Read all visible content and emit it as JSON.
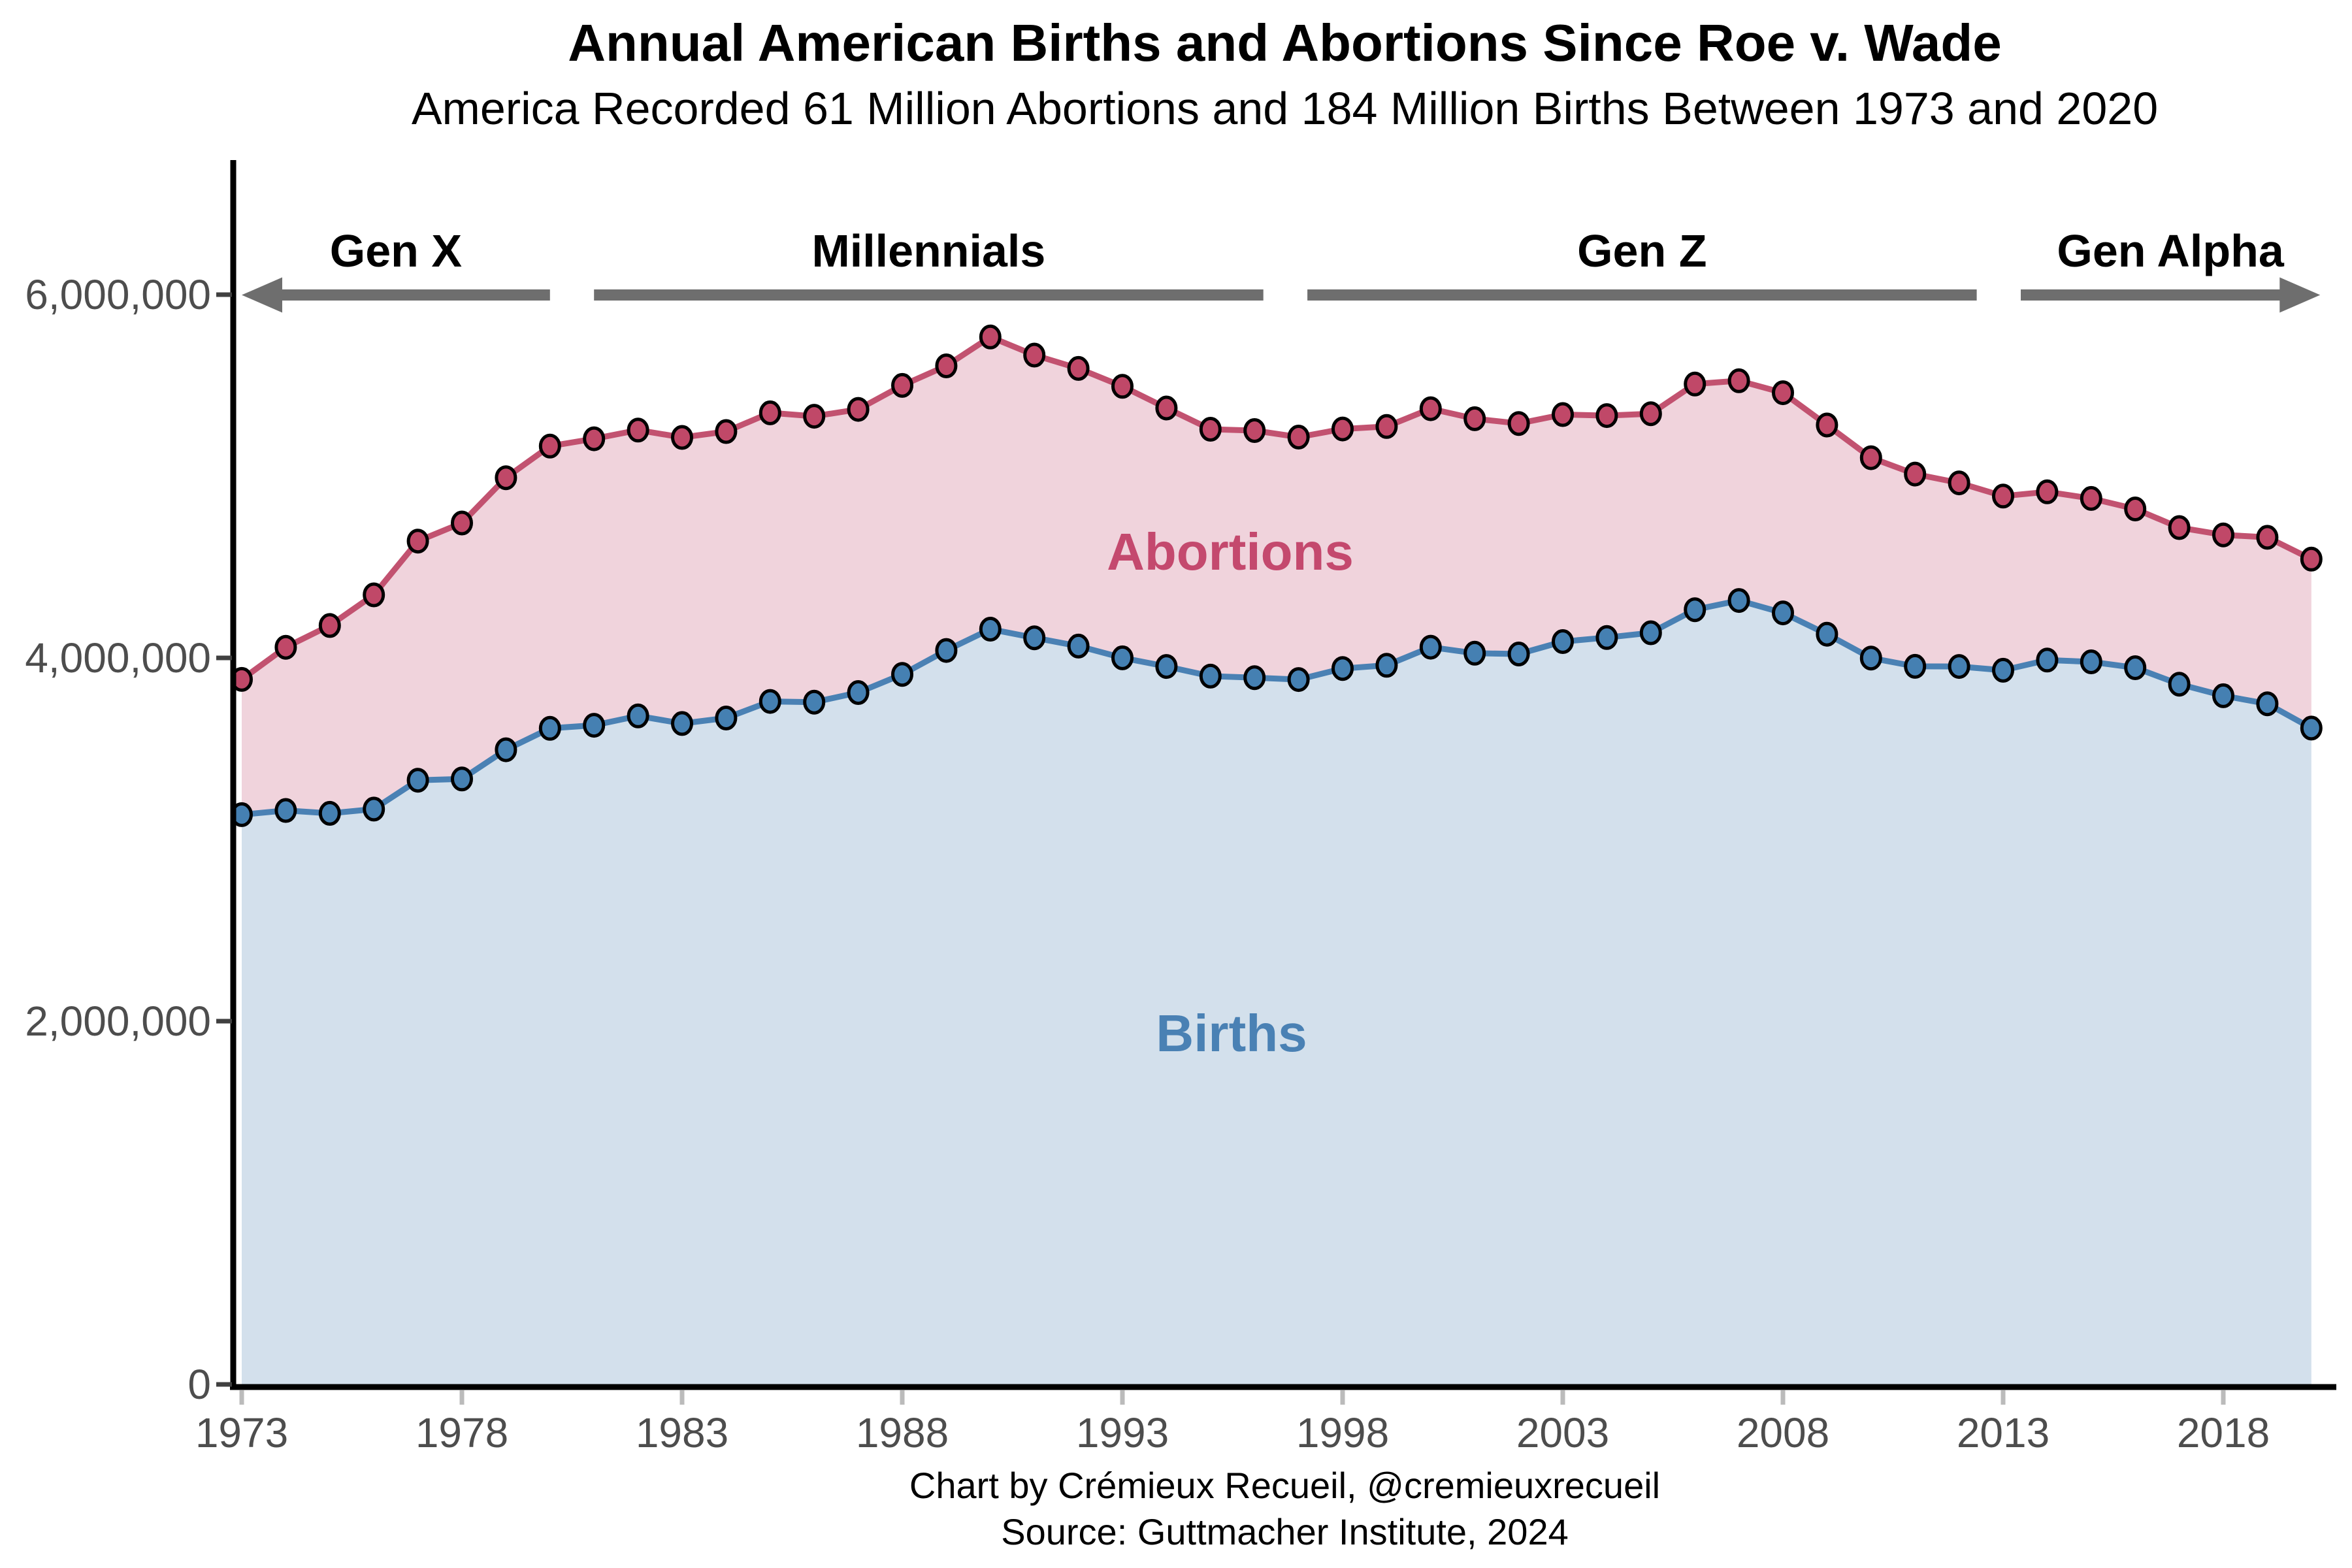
{
  "title": "Annual American Births and Abortions Since Roe v. Wade",
  "subtitle": "America Recorded 61 Million Abortions and 184 Million Births Between 1973 and 2020",
  "caption": {
    "line1": "Chart by Crémieux Recueil, @cremieuxrecueil",
    "line2": "Source: Guttmacher Institute, 2024"
  },
  "series_labels": {
    "abortions": "Abortions",
    "births": "Births"
  },
  "colors": {
    "births_line": "#4a81b4",
    "births_dot": "#4580b2",
    "births_fill": "#d3e0ec",
    "births_label": "#4a81b4",
    "abortions_line": "#c25270",
    "abortions_dot": "#c04868",
    "abortions_fill": "#f0d3dc",
    "abortions_label": "#c4496e",
    "generation_bar": "#6e6e6e",
    "axis": "#000000",
    "tick_label": "#4d4d4d",
    "x_tick_mark": "#bbbbbb",
    "y_tick_mark": "#404040",
    "dot_outline": "#000000"
  },
  "axes": {
    "y_ticks": [
      {
        "value": 0,
        "label": "0"
      },
      {
        "value": 2000000,
        "label": "2,000,000"
      },
      {
        "value": 4000000,
        "label": "4,000,000"
      },
      {
        "value": 6000000,
        "label": "6,000,000"
      }
    ],
    "x_ticks": [
      1973,
      1978,
      1983,
      1988,
      1993,
      1998,
      2003,
      2008,
      2013,
      2018
    ],
    "x_range": [
      1973,
      2020
    ],
    "y_range": [
      0,
      6500000
    ]
  },
  "generations": [
    {
      "label": "Gen X",
      "start": 1973.0,
      "end": 1980.0,
      "arrow": "left"
    },
    {
      "label": "Millennials",
      "start": 1981.0,
      "end": 1996.2,
      "arrow": "none"
    },
    {
      "label": "Gen Z",
      "start": 1997.2,
      "end": 2012.4,
      "arrow": "none"
    },
    {
      "label": "Gen Alpha",
      "start": 2013.4,
      "end": 2020.2,
      "arrow": "right"
    }
  ],
  "chart_data": {
    "type": "area",
    "stacked": true,
    "note": "Abortions band is stacked on top of Births; top line equals Births + Abortions",
    "title": "Annual American Births and Abortions Since Roe v. Wade",
    "xlabel": "",
    "ylabel": "",
    "ylim": [
      0,
      6500000
    ],
    "legend_position": "in-plot text labels",
    "grid": false,
    "x": [
      1973,
      1974,
      1975,
      1976,
      1977,
      1978,
      1979,
      1980,
      1981,
      1982,
      1983,
      1984,
      1985,
      1986,
      1987,
      1988,
      1989,
      1990,
      1991,
      1992,
      1993,
      1994,
      1995,
      1996,
      1997,
      1998,
      1999,
      2000,
      2001,
      2002,
      2003,
      2004,
      2005,
      2006,
      2007,
      2008,
      2009,
      2010,
      2011,
      2012,
      2013,
      2014,
      2015,
      2016,
      2017,
      2018,
      2019,
      2020
    ],
    "series": [
      {
        "name": "Births",
        "values": [
          3136965,
          3159958,
          3144198,
          3167788,
          3326632,
          3333279,
          3494398,
          3612258,
          3629238,
          3680537,
          3638933,
          3669141,
          3760561,
          3756547,
          3809394,
          3909510,
          4040958,
          4158212,
          4110907,
          4065014,
          4000240,
          3952767,
          3899589,
          3891494,
          3880894,
          3941553,
          3959417,
          4058814,
          4025933,
          4021726,
          4089950,
          4112052,
          4138349,
          4265555,
          4316233,
          4247694,
          4130665,
          3999386,
          3953590,
          3952841,
          3932181,
          3988076,
          3978497,
          3945875,
          3855500,
          3791712,
          3747540,
          3613647
        ]
      },
      {
        "name": "Abortions",
        "values": [
          744600,
          898600,
          1034200,
          1179300,
          1316700,
          1409600,
          1497700,
          1553900,
          1577300,
          1573900,
          1575000,
          1577200,
          1588600,
          1574000,
          1559100,
          1590800,
          1566900,
          1608600,
          1556500,
          1528900,
          1495000,
          1423000,
          1359400,
          1360200,
          1335000,
          1319000,
          1314800,
          1313000,
          1291000,
          1269000,
          1250000,
          1222100,
          1206200,
          1242200,
          1209600,
          1212400,
          1151600,
          1102700,
          1058500,
          1011000,
          958700,
          926200,
          899500,
          874100,
          862300,
          885800,
          916500,
          930200
        ]
      }
    ]
  }
}
